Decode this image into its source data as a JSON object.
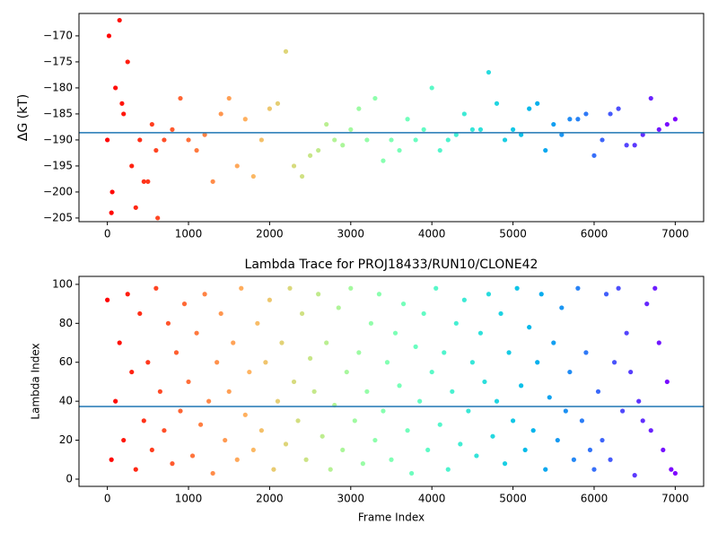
{
  "chart_data": [
    {
      "type": "scatter",
      "y_label": "ΔG (kT)",
      "colormap": "rainbow_r",
      "x": [
        0,
        100,
        200,
        300,
        400,
        500,
        600,
        700,
        800,
        900,
        1000,
        1100,
        1200,
        1300,
        1400,
        1500,
        1600,
        1700,
        1800,
        1900,
        2000,
        2100,
        2200,
        2300,
        2400,
        2500,
        2600,
        2700,
        2800,
        2900,
        3000,
        3100,
        3200,
        3300,
        3400,
        3500,
        3600,
        3700,
        3800,
        3900,
        4000,
        4100,
        4200,
        4300,
        4400,
        4500,
        4600,
        4700,
        4800,
        4900,
        5000,
        5100,
        5200,
        5300,
        5400,
        5500,
        5600,
        5700,
        5800,
        5900,
        6000,
        6100,
        6200,
        6300,
        6400,
        6500,
        6600,
        6700,
        6800,
        6900,
        7000,
        20,
        50,
        60,
        150,
        180,
        250,
        350,
        450,
        550,
        620
      ],
      "values": [
        -190,
        -180,
        -185,
        -195,
        -190,
        -198,
        -192,
        -190,
        -188,
        -182,
        -190,
        -192,
        -189,
        -198,
        -185,
        -182,
        -195,
        -186,
        -197,
        -190,
        -184,
        -183,
        -173,
        -195,
        -197,
        -193,
        -192,
        -187,
        -190,
        -191,
        -188,
        -184,
        -190,
        -182,
        -194,
        -190,
        -192,
        -186,
        -190,
        -188,
        -180,
        -192,
        -190,
        -189,
        -185,
        -188,
        -188,
        -177,
        -183,
        -190,
        -188,
        -189,
        -184,
        -183,
        -192,
        -187,
        -189,
        -186,
        -186,
        -185,
        -193,
        -190,
        -185,
        -184,
        -191,
        -191,
        -189,
        -182,
        -188,
        -187,
        -186,
        -170,
        -204,
        -200,
        -167,
        -183,
        -175,
        -203,
        -198,
        -187,
        -205
      ],
      "hline": -188.6,
      "hline_color": "#1f77b4",
      "xlim": [
        -350,
        7350
      ],
      "ylim": [
        -205.7,
        -165.7
      ],
      "xticks": [
        0,
        1000,
        2000,
        3000,
        4000,
        5000,
        6000,
        7000
      ],
      "yticks": [
        {
          "value": -205,
          "label": "−205"
        },
        {
          "value": -200,
          "label": "−200"
        },
        {
          "value": -195,
          "label": "−195"
        },
        {
          "value": -190,
          "label": "−190"
        },
        {
          "value": -185,
          "label": "−185"
        },
        {
          "value": -180,
          "label": "−180"
        },
        {
          "value": -175,
          "label": "−175"
        },
        {
          "value": -170,
          "label": "−170"
        }
      ]
    },
    {
      "type": "scatter",
      "title": "Lambda Trace for PROJ18433/RUN10/CLONE42",
      "x_label": "Frame Index",
      "y_label": "Lambda Index",
      "colormap": "rainbow_r",
      "x": [
        0,
        50,
        100,
        150,
        200,
        250,
        300,
        350,
        400,
        450,
        500,
        550,
        600,
        650,
        700,
        750,
        800,
        850,
        900,
        950,
        1000,
        1050,
        1100,
        1150,
        1200,
        1250,
        1300,
        1350,
        1400,
        1450,
        1500,
        1550,
        1600,
        1650,
        1700,
        1750,
        1800,
        1850,
        1900,
        1950,
        2000,
        2050,
        2100,
        2150,
        2200,
        2250,
        2300,
        2350,
        2400,
        2450,
        2500,
        2550,
        2600,
        2650,
        2700,
        2750,
        2800,
        2850,
        2900,
        2950,
        3000,
        3050,
        3100,
        3150,
        3200,
        3250,
        3300,
        3350,
        3400,
        3450,
        3500,
        3550,
        3600,
        3650,
        3700,
        3750,
        3800,
        3850,
        3900,
        3950,
        4000,
        4050,
        4100,
        4150,
        4200,
        4250,
        4300,
        4350,
        4400,
        4450,
        4500,
        4550,
        4600,
        4650,
        4700,
        4750,
        4800,
        4850,
        4900,
        4950,
        5000,
        5050,
        5100,
        5150,
        5200,
        5250,
        5300,
        5350,
        5400,
        5450,
        5500,
        5550,
        5600,
        5650,
        5700,
        5750,
        5800,
        5850,
        5900,
        5950,
        6000,
        6050,
        6100,
        6150,
        6200,
        6250,
        6300,
        6350,
        6400,
        6450,
        6500,
        6550,
        6600,
        6650,
        6700,
        6750,
        6800,
        6850,
        6900,
        6950,
        7000
      ],
      "values": [
        92,
        10,
        40,
        70,
        20,
        95,
        55,
        5,
        85,
        30,
        60,
        15,
        98,
        45,
        25,
        80,
        8,
        65,
        35,
        90,
        50,
        12,
        75,
        28,
        95,
        40,
        3,
        60,
        85,
        20,
        45,
        70,
        10,
        98,
        33,
        55,
        15,
        80,
        25,
        60,
        92,
        5,
        40,
        70,
        18,
        98,
        50,
        30,
        85,
        10,
        62,
        45,
        95,
        22,
        70,
        5,
        38,
        88,
        15,
        55,
        98,
        30,
        65,
        8,
        45,
        80,
        20,
        95,
        35,
        60,
        10,
        75,
        48,
        90,
        25,
        3,
        68,
        40,
        85,
        15,
        55,
        98,
        28,
        65,
        5,
        45,
        80,
        18,
        92,
        35,
        60,
        12,
        75,
        50,
        95,
        22,
        40,
        85,
        8,
        65,
        30,
        98,
        48,
        15,
        78,
        25,
        60,
        95,
        5,
        42,
        70,
        20,
        88,
        35,
        55,
        10,
        98,
        30,
        65,
        15,
        5,
        45,
        20,
        95,
        10,
        60,
        98,
        35,
        75,
        55,
        2,
        40,
        30,
        90,
        25,
        98,
        70,
        15,
        50,
        5,
        3
      ],
      "hline": 37.3,
      "hline_color": "#1f77b4",
      "xlim": [
        -350,
        7350
      ],
      "ylim": [
        -3.7,
        104.1
      ],
      "xticks": [
        0,
        1000,
        2000,
        3000,
        4000,
        5000,
        6000,
        7000
      ],
      "yticks": [
        0,
        20,
        40,
        60,
        80,
        100
      ]
    }
  ]
}
